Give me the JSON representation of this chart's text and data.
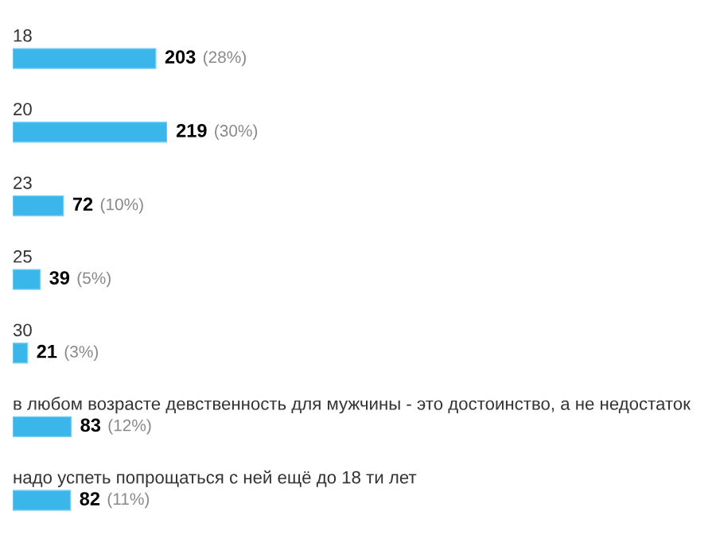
{
  "chart_data": {
    "type": "bar",
    "orientation": "horizontal",
    "categories": [
      "18",
      "20",
      "23",
      "25",
      "30",
      "в любом возрасте девственность для мужчины - это достоинство, а не недостаток",
      "надо успеть попрощаться с ней ещё до 18 ти лет"
    ],
    "values": [
      203,
      219,
      72,
      39,
      21,
      83,
      82
    ],
    "value_labels": [
      "203 (28%)",
      "219 (30%)",
      "72 (10%)",
      "39 (5%)",
      "21 (3%)",
      "83 (12%)",
      "82 (11%)"
    ],
    "color": "#3ab6ea"
  }
}
